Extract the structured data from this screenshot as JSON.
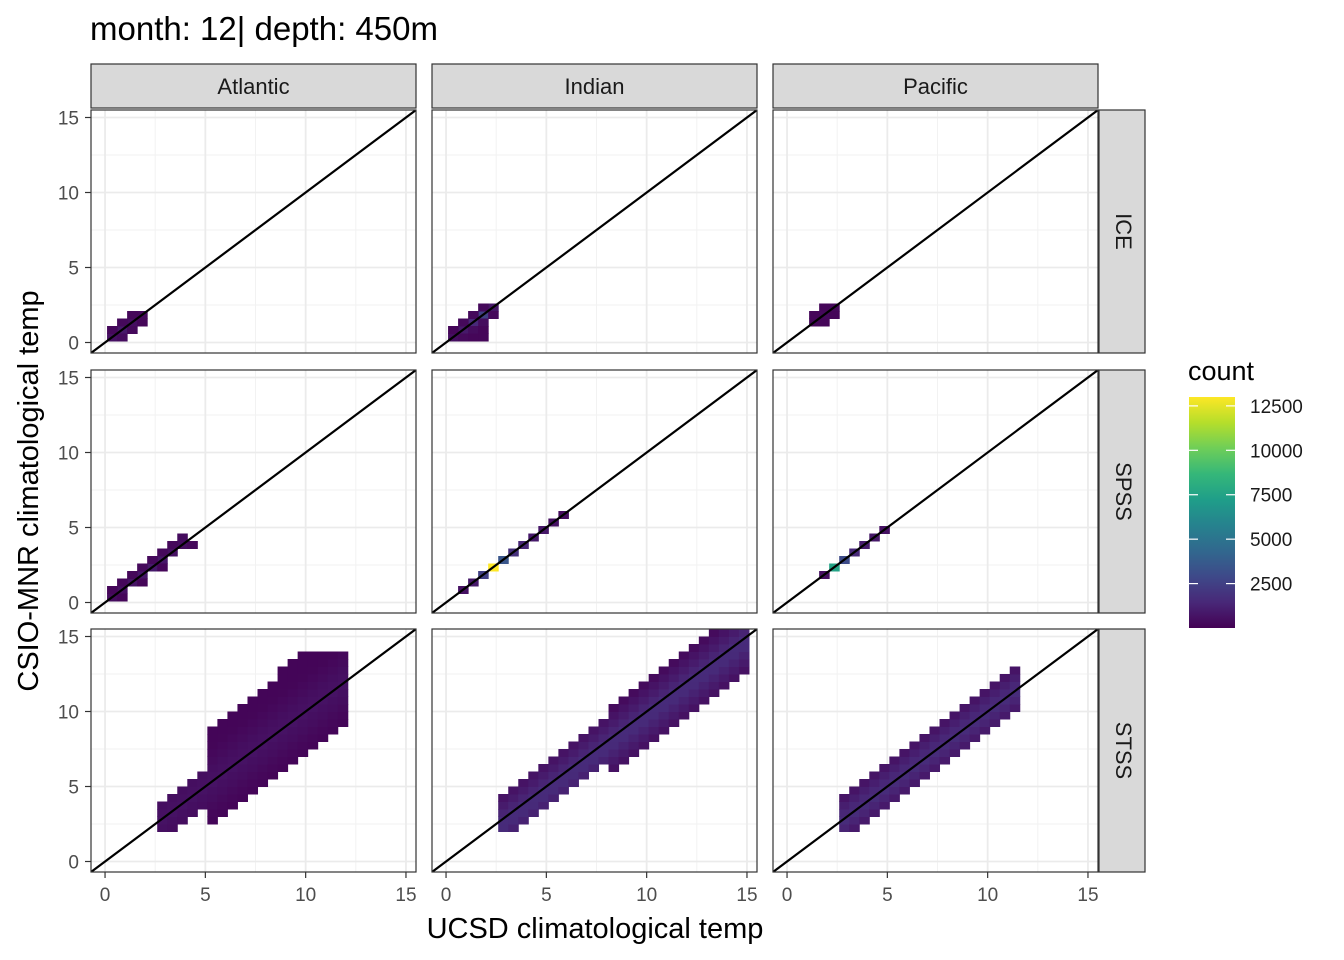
{
  "chart_data": {
    "type": "heatmap",
    "title": "month: 12| depth: 450m",
    "xlabel": "UCSD climatological temp",
    "ylabel": "CSIO-MNR climatological temp",
    "xlim": [
      -0.7,
      15.5
    ],
    "ylim": [
      -0.7,
      15.5
    ],
    "x_ticks": [
      0,
      5,
      10,
      15
    ],
    "y_ticks": [
      0,
      5,
      10,
      15
    ],
    "grid": true,
    "reference_line": "y = x",
    "bin_width": 0.5,
    "columns": [
      "Atlantic",
      "Indian",
      "Pacific"
    ],
    "rows": [
      "ICE",
      "SPSS",
      "STSS"
    ],
    "legend": {
      "title": "count",
      "position": "right",
      "ticks": [
        2500,
        5000,
        7500,
        10000,
        12500
      ],
      "min": 1,
      "max": 13000,
      "colors": [
        "#440154",
        "#482878",
        "#3e4989",
        "#31688e",
        "#26828e",
        "#1f9e89",
        "#35b779",
        "#6ece58",
        "#b5de2b",
        "#fde725"
      ]
    },
    "panels": [
      {
        "column": "Atlantic",
        "row": "ICE",
        "cells": [
          [
            0.1,
            0.1,
            600
          ],
          [
            0.6,
            0.6,
            900
          ],
          [
            1.1,
            1.1,
            500
          ],
          [
            1.6,
            1.6,
            300
          ],
          [
            0.6,
            0.1,
            400
          ],
          [
            1.1,
            0.6,
            300
          ],
          [
            1.1,
            1.6,
            250
          ],
          [
            1.6,
            1.1,
            200
          ],
          [
            0.1,
            0.6,
            250
          ],
          [
            0.6,
            1.1,
            300
          ]
        ]
      },
      {
        "column": "Atlantic",
        "row": "SPSS",
        "cells": [
          [
            0.1,
            0.1,
            400
          ],
          [
            0.6,
            0.6,
            600
          ],
          [
            1.1,
            1.1,
            700
          ],
          [
            1.6,
            1.6,
            800
          ],
          [
            2.1,
            2.1,
            900
          ],
          [
            2.6,
            2.6,
            800
          ],
          [
            3.1,
            3.1,
            600
          ],
          [
            3.6,
            3.6,
            500
          ],
          [
            4.1,
            3.6,
            300
          ],
          [
            3.6,
            4.1,
            400
          ],
          [
            3.1,
            3.6,
            300
          ],
          [
            2.6,
            3.1,
            300
          ],
          [
            2.1,
            2.6,
            300
          ],
          [
            1.6,
            2.1,
            300
          ],
          [
            1.1,
            1.6,
            250
          ],
          [
            0.6,
            1.1,
            250
          ],
          [
            1.6,
            1.1,
            200
          ],
          [
            2.6,
            2.1,
            200
          ],
          [
            0.1,
            0.6,
            200
          ],
          [
            0.6,
            0.1,
            200
          ]
        ]
      },
      {
        "column": "Atlantic",
        "row": "STSS",
        "cells": []
      },
      {
        "column": "Indian",
        "row": "ICE",
        "cells": [
          [
            0.1,
            0.1,
            500
          ],
          [
            0.6,
            0.6,
            900
          ],
          [
            1.1,
            1.1,
            1500
          ],
          [
            1.6,
            1.6,
            2500
          ],
          [
            2.1,
            2.1,
            800
          ],
          [
            0.6,
            0.1,
            300
          ],
          [
            1.1,
            0.6,
            400
          ],
          [
            1.6,
            1.1,
            400
          ],
          [
            1.1,
            0.1,
            200
          ],
          [
            1.6,
            0.6,
            200
          ],
          [
            1.6,
            0.1,
            200
          ],
          [
            0.1,
            0.6,
            200
          ],
          [
            0.6,
            1.1,
            300
          ],
          [
            1.1,
            1.6,
            300
          ],
          [
            1.6,
            2.1,
            300
          ],
          [
            2.1,
            1.6,
            300
          ]
        ]
      },
      {
        "column": "Indian",
        "row": "SPSS",
        "cells": [
          [
            0.6,
            0.6,
            600
          ],
          [
            1.1,
            1.1,
            900
          ],
          [
            1.6,
            1.6,
            2500
          ],
          [
            2.1,
            2.1,
            13000
          ],
          [
            2.6,
            2.6,
            3500
          ],
          [
            3.1,
            3.1,
            1800
          ],
          [
            3.6,
            3.6,
            1400
          ],
          [
            4.1,
            4.1,
            900
          ],
          [
            4.6,
            4.6,
            800
          ],
          [
            5.1,
            5.1,
            600
          ],
          [
            5.6,
            5.6,
            400
          ]
        ]
      },
      {
        "column": "Indian",
        "row": "STSS",
        "cells": []
      },
      {
        "column": "Pacific",
        "row": "ICE",
        "cells": [
          [
            1.6,
            1.6,
            300
          ],
          [
            2.1,
            2.1,
            300
          ],
          [
            1.1,
            1.1,
            200
          ],
          [
            1.6,
            1.1,
            200
          ],
          [
            1.1,
            1.6,
            200
          ],
          [
            2.1,
            1.6,
            200
          ],
          [
            1.6,
            2.1,
            200
          ]
        ]
      },
      {
        "column": "Pacific",
        "row": "SPSS",
        "cells": [
          [
            1.6,
            1.6,
            500
          ],
          [
            2.1,
            2.1,
            7500
          ],
          [
            2.6,
            2.6,
            3000
          ],
          [
            3.1,
            3.1,
            1500
          ],
          [
            3.6,
            3.6,
            1000
          ],
          [
            4.1,
            4.1,
            800
          ],
          [
            4.6,
            4.6,
            600
          ]
        ]
      },
      {
        "column": "Pacific",
        "row": "STSS",
        "cells": []
      }
    ]
  }
}
